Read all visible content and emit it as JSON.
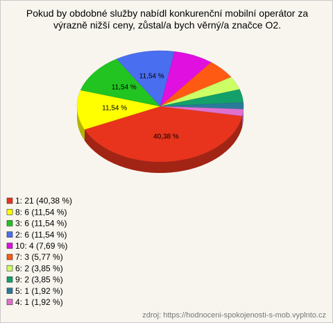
{
  "chart_data": {
    "type": "pie",
    "title": "Pokud by obdobné služby nabídl konkurenční mobilní operátor za výrazně nižší ceny, zůstal/a bych věrný/a značce O2.",
    "categories": [
      "1: 21 (40,38 %)",
      "8: 6 (11,54 %)",
      "3: 6 (11,54 %)",
      "2: 6 (11,54 %)",
      "10: 4 (7,69 %)",
      "7: 3 (5,77 %)",
      "6: 2 (3,85 %)",
      "9: 2 (3,85 %)",
      "5: 1 (1,92 %)",
      "4: 1 (1,92 %)"
    ],
    "values": [
      40.38,
      11.54,
      11.54,
      11.54,
      7.69,
      5.77,
      3.85,
      3.85,
      1.92,
      1.92
    ],
    "value_labels": [
      "40,38 %",
      "11,54 %",
      "11,54 %",
      "11,54 %",
      null,
      null,
      null,
      null,
      null,
      null
    ],
    "colors": [
      "#e8341c",
      "#ffff00",
      "#22c422",
      "#4a6ef0",
      "#e010e0",
      "#ff5a14",
      "#ccff66",
      "#14a06a",
      "#2a7a9a",
      "#e070d0"
    ],
    "source": "zdroj: https://hodnoceni-spokojenosti-s-mob.vyplnto.cz"
  }
}
